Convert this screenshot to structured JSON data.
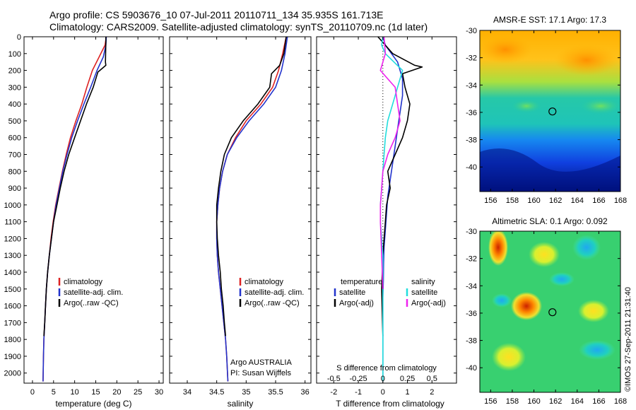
{
  "header": {
    "line1": "Argo profile: CS 5903676_10 07-Jul-2011 20110711_134 35.935S 161.713E",
    "line2": "Climatology: CARS2009. Satellite-adjusted climatology: synTS_20110709.nc (1d later)"
  },
  "credit": {
    "footer": "©IMOS 27-Sep-2011 21:31:40",
    "argo_program": "Argo AUSTRALIA",
    "pi": "PI: Susan Wijffels"
  },
  "colors": {
    "climatology": "#dd2222",
    "satellite": "#2233cc",
    "argo": "#000000",
    "salinity_satellite": "#22dddd",
    "salinity_argo": "#ee22ee"
  },
  "chart_data": [
    {
      "type": "line",
      "id": "temperature-profile",
      "xlabel": "temperature (deg C)",
      "ylabel": "",
      "xlim": [
        -2,
        31
      ],
      "ylim": [
        2060,
        0
      ],
      "xticks": [
        0,
        5,
        10,
        15,
        20,
        25,
        30
      ],
      "yticks": [
        0,
        100,
        200,
        300,
        400,
        500,
        600,
        700,
        800,
        900,
        1000,
        1100,
        1200,
        1300,
        1400,
        1500,
        1600,
        1700,
        1800,
        1900,
        2000
      ],
      "legend": [
        "climatology",
        "satellite-adj. clim.",
        "Argo(..raw -QC)"
      ],
      "series": [
        {
          "name": "climatology",
          "color": "#dd2222",
          "x": [
            17.5,
            17.2,
            15.8,
            14.2,
            12.9,
            11.7,
            10.3,
            9.0,
            8.0,
            7.1,
            6.3,
            5.5,
            4.9,
            4.4,
            4.0,
            3.6,
            3.3,
            3.1,
            2.9,
            2.7,
            2.6,
            2.5
          ],
          "y": [
            0,
            50,
            120,
            200,
            300,
            400,
            500,
            600,
            700,
            800,
            900,
            1000,
            1100,
            1200,
            1300,
            1400,
            1500,
            1600,
            1700,
            1800,
            1900,
            2050
          ]
        },
        {
          "name": "satellite-adj. clim.",
          "color": "#2233cc",
          "x": [
            17.5,
            17.4,
            16.8,
            15.3,
            13.8,
            12.2,
            10.7,
            9.3,
            8.2,
            7.2,
            6.4,
            5.6,
            5.0,
            4.5,
            4.0,
            3.6,
            3.3,
            3.1,
            2.9,
            2.7,
            2.6,
            2.5
          ],
          "y": [
            0,
            50,
            120,
            200,
            300,
            400,
            500,
            600,
            700,
            800,
            900,
            1000,
            1100,
            1200,
            1300,
            1400,
            1500,
            1600,
            1700,
            1800,
            1900,
            2050
          ]
        },
        {
          "name": "Argo(..raw -QC)",
          "color": "#000000",
          "x": [
            17.4,
            17.4,
            17.3,
            17.4,
            15.5,
            14.4,
            12.8,
            11.4,
            10.0,
            8.6,
            7.5,
            6.6,
            5.8,
            5.0,
            4.5,
            4.0,
            3.6,
            3.3,
            3.1,
            2.9,
            2.7
          ],
          "y": [
            0,
            30,
            150,
            170,
            210,
            300,
            400,
            500,
            600,
            700,
            800,
            900,
            1000,
            1100,
            1200,
            1300,
            1400,
            1500,
            1600,
            1700,
            1780
          ]
        }
      ]
    },
    {
      "type": "line",
      "id": "salinity-profile",
      "xlabel": "salinity",
      "ylabel": "",
      "xlim": [
        33.7,
        36.1
      ],
      "ylim": [
        2060,
        0
      ],
      "xticks": [
        34,
        34.5,
        35,
        35.5,
        36
      ],
      "legend": [
        "climatology",
        "satellite-adj. clim.",
        "Argo(..raw -QC)"
      ],
      "series": [
        {
          "name": "climatology",
          "color": "#dd2222",
          "x": [
            35.68,
            35.62,
            35.55,
            35.45,
            35.25,
            35.0,
            34.82,
            34.68,
            34.6,
            34.55,
            34.52,
            34.5,
            34.5,
            34.51,
            34.53,
            34.56,
            34.59,
            34.62,
            34.65,
            34.67,
            34.69
          ],
          "y": [
            0,
            100,
            200,
            300,
            400,
            500,
            600,
            700,
            800,
            900,
            1000,
            1100,
            1200,
            1300,
            1400,
            1500,
            1600,
            1700,
            1800,
            1900,
            2050
          ]
        },
        {
          "name": "satellite-adj. clim.",
          "color": "#2233cc",
          "x": [
            35.7,
            35.66,
            35.6,
            35.5,
            35.3,
            35.05,
            34.84,
            34.68,
            34.6,
            34.55,
            34.52,
            34.5,
            34.5,
            34.51,
            34.53,
            34.56,
            34.59,
            34.62,
            34.65,
            34.67,
            34.69
          ],
          "y": [
            0,
            100,
            200,
            300,
            400,
            500,
            600,
            700,
            800,
            900,
            1000,
            1100,
            1200,
            1300,
            1400,
            1500,
            1600,
            1700,
            1800,
            1900,
            2050
          ]
        },
        {
          "name": "Argo(..raw -QC)",
          "color": "#000000",
          "x": [
            35.68,
            35.64,
            35.57,
            35.43,
            35.4,
            35.2,
            34.95,
            34.75,
            34.63,
            34.57,
            34.53,
            34.5,
            34.5,
            34.51,
            34.53,
            34.56,
            34.58,
            34.61,
            34.63,
            34.65
          ],
          "y": [
            0,
            100,
            170,
            220,
            300,
            400,
            500,
            600,
            700,
            800,
            900,
            1000,
            1100,
            1200,
            1300,
            1400,
            1500,
            1600,
            1700,
            1780
          ]
        }
      ]
    },
    {
      "type": "line",
      "id": "difference-profile",
      "xlabel": "T difference from climatology",
      "top_xlabel": "S difference from climatology",
      "xlim": [
        -2.7,
        3.0
      ],
      "ylim": [
        2060,
        0
      ],
      "xticks": [
        -2,
        -1,
        0,
        1,
        2
      ],
      "top_ticks": [
        -0.5,
        -0.25,
        0,
        0.25,
        0.5
      ],
      "top_tick_labels": [
        "-0.5",
        "-0.25",
        "0",
        "0.25",
        "0.5"
      ],
      "legend_temperature_title": "temperature",
      "legend_salinity_title": "salinity",
      "legend_temperature": [
        "satellite",
        "Argo(-adj)"
      ],
      "legend_salinity": [
        "satellite",
        "Argo(-adj)"
      ],
      "series": [
        {
          "name": "satellite",
          "color": "#2233cc",
          "x": [
            0.0,
            0.1,
            0.6,
            0.8,
            0.8,
            0.7,
            0.6,
            0.5,
            0.4,
            0.3,
            0.2,
            0.15,
            0.1,
            0.05,
            0.03,
            0.02,
            0.0,
            0.0,
            0.0,
            0.0
          ],
          "y": [
            0,
            50,
            150,
            250,
            350,
            450,
            550,
            650,
            750,
            850,
            950,
            1050,
            1150,
            1250,
            1350,
            1450,
            1550,
            1650,
            1800,
            2050
          ]
        },
        {
          "name": "Argo(-adj)",
          "color": "#000000",
          "x": [
            -0.2,
            0.4,
            1.3,
            1.6,
            0.8,
            0.9,
            1.1,
            1.0,
            0.8,
            0.5,
            0.2,
            0.3,
            0.15,
            0.1,
            0.05,
            0.0,
            -0.05,
            0.0
          ],
          "y": [
            0,
            100,
            170,
            180,
            220,
            300,
            400,
            500,
            600,
            700,
            800,
            900,
            1000,
            1100,
            1200,
            1300,
            1500,
            1780
          ]
        },
        {
          "name": "satellite",
          "color": "#22dddd",
          "x": [
            0.0,
            -0.05,
            0.1,
            0.8,
            0.6,
            0.4,
            0.2,
            0.1,
            0.05,
            0.0,
            -0.05,
            -0.1,
            -0.1,
            -0.05,
            0.0,
            0.0,
            0.0,
            0.0,
            0.0,
            0.0
          ],
          "y": [
            0,
            50,
            100,
            200,
            300,
            400,
            500,
            600,
            700,
            800,
            900,
            1000,
            1100,
            1200,
            1300,
            1400,
            1500,
            1600,
            1800,
            2050
          ]
        },
        {
          "name": "Argo(-adj)",
          "color": "#ee22ee",
          "x": [
            0.05,
            0.1,
            -0.1,
            0.2,
            0.5,
            0.6,
            0.7,
            0.5,
            0.2,
            0.0,
            -0.05,
            -0.1,
            -0.1,
            -0.05,
            0.0
          ],
          "y": [
            0,
            100,
            200,
            250,
            300,
            400,
            500,
            600,
            700,
            800,
            900,
            1000,
            1100,
            1300,
            1500
          ]
        }
      ]
    },
    {
      "type": "heatmap",
      "id": "sst-map",
      "title": "AMSR-E SST: 17.1 Argo: 17.3",
      "xlim": [
        155,
        168
      ],
      "ylim": [
        -41.8,
        -30
      ],
      "xticks": [
        156,
        158,
        160,
        162,
        164,
        166,
        168
      ],
      "yticks": [
        -30,
        -32,
        -34,
        -36,
        -38,
        -40
      ],
      "marker": {
        "lon": 161.713,
        "lat": -35.935
      }
    },
    {
      "type": "heatmap",
      "id": "sla-map",
      "title": "Altimetric SLA: 0.1 Argo: 0.092",
      "xlim": [
        155,
        168
      ],
      "ylim": [
        -41.8,
        -30
      ],
      "xticks": [
        156,
        158,
        160,
        162,
        164,
        166,
        168
      ],
      "yticks": [
        -30,
        -32,
        -34,
        -36,
        -38,
        -40
      ],
      "marker": {
        "lon": 161.713,
        "lat": -35.935
      }
    }
  ]
}
